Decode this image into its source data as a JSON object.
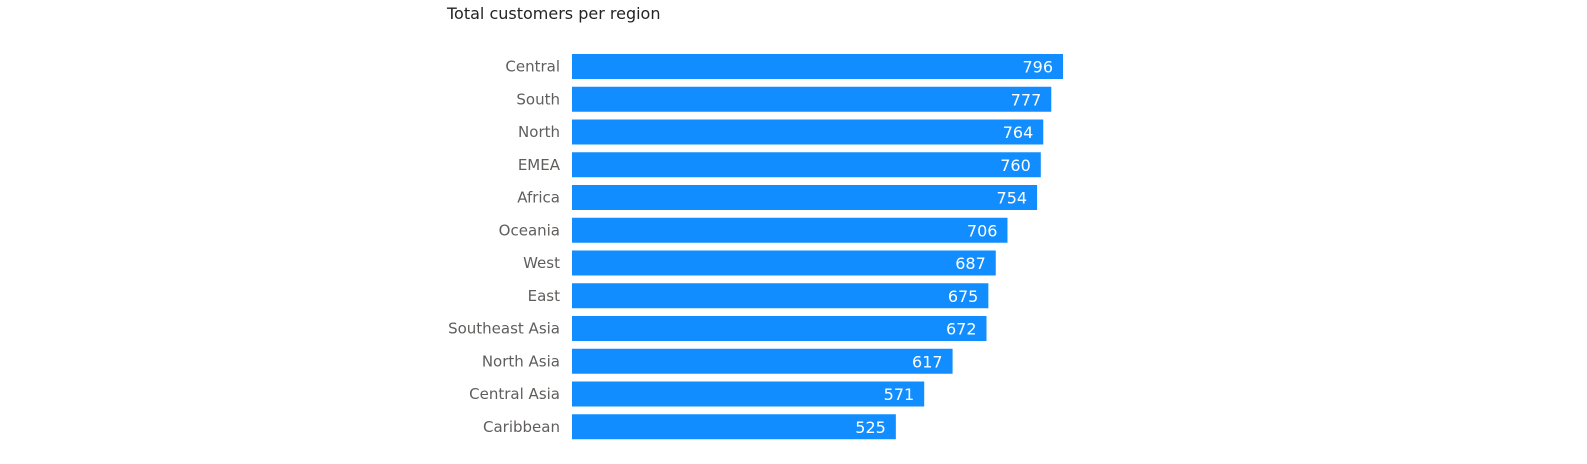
{
  "chart_data": {
    "type": "bar",
    "orientation": "horizontal",
    "title": "Total customers per region",
    "categories": [
      "Central",
      "South",
      "North",
      "EMEA",
      "Africa",
      "Oceania",
      "West",
      "East",
      "Southeast Asia",
      "North Asia",
      "Central Asia",
      "Caribbean"
    ],
    "values": [
      796,
      777,
      764,
      760,
      754,
      706,
      687,
      675,
      672,
      617,
      571,
      525
    ],
    "bar_color": "#118dff",
    "data_labels": true,
    "grid": false,
    "xlim": [
      0,
      800
    ]
  }
}
